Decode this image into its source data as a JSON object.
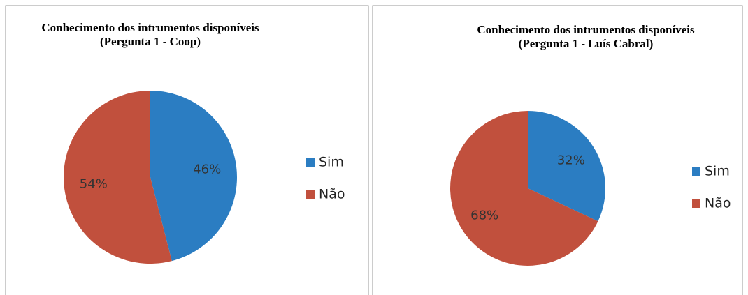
{
  "chart_data": [
    {
      "type": "pie",
      "title": [
        "Conhecimento dos intrumentos disponíveis",
        "(Pergunta 1 - Coop)"
      ],
      "categories": [
        "Sim",
        "Não"
      ],
      "values": [
        46,
        54
      ],
      "value_labels": [
        "46%",
        "54%"
      ],
      "colors": [
        "#2b7dc2",
        "#c1503d"
      ]
    },
    {
      "type": "pie",
      "title": [
        "Conhecimento dos intrumentos disponíveis",
        "(Pergunta 1 - Luís Cabral)"
      ],
      "categories": [
        "Sim",
        "Não"
      ],
      "values": [
        32,
        68
      ],
      "value_labels": [
        "32%",
        "68%"
      ],
      "colors": [
        "#2b7dc2",
        "#c1503d"
      ]
    }
  ]
}
